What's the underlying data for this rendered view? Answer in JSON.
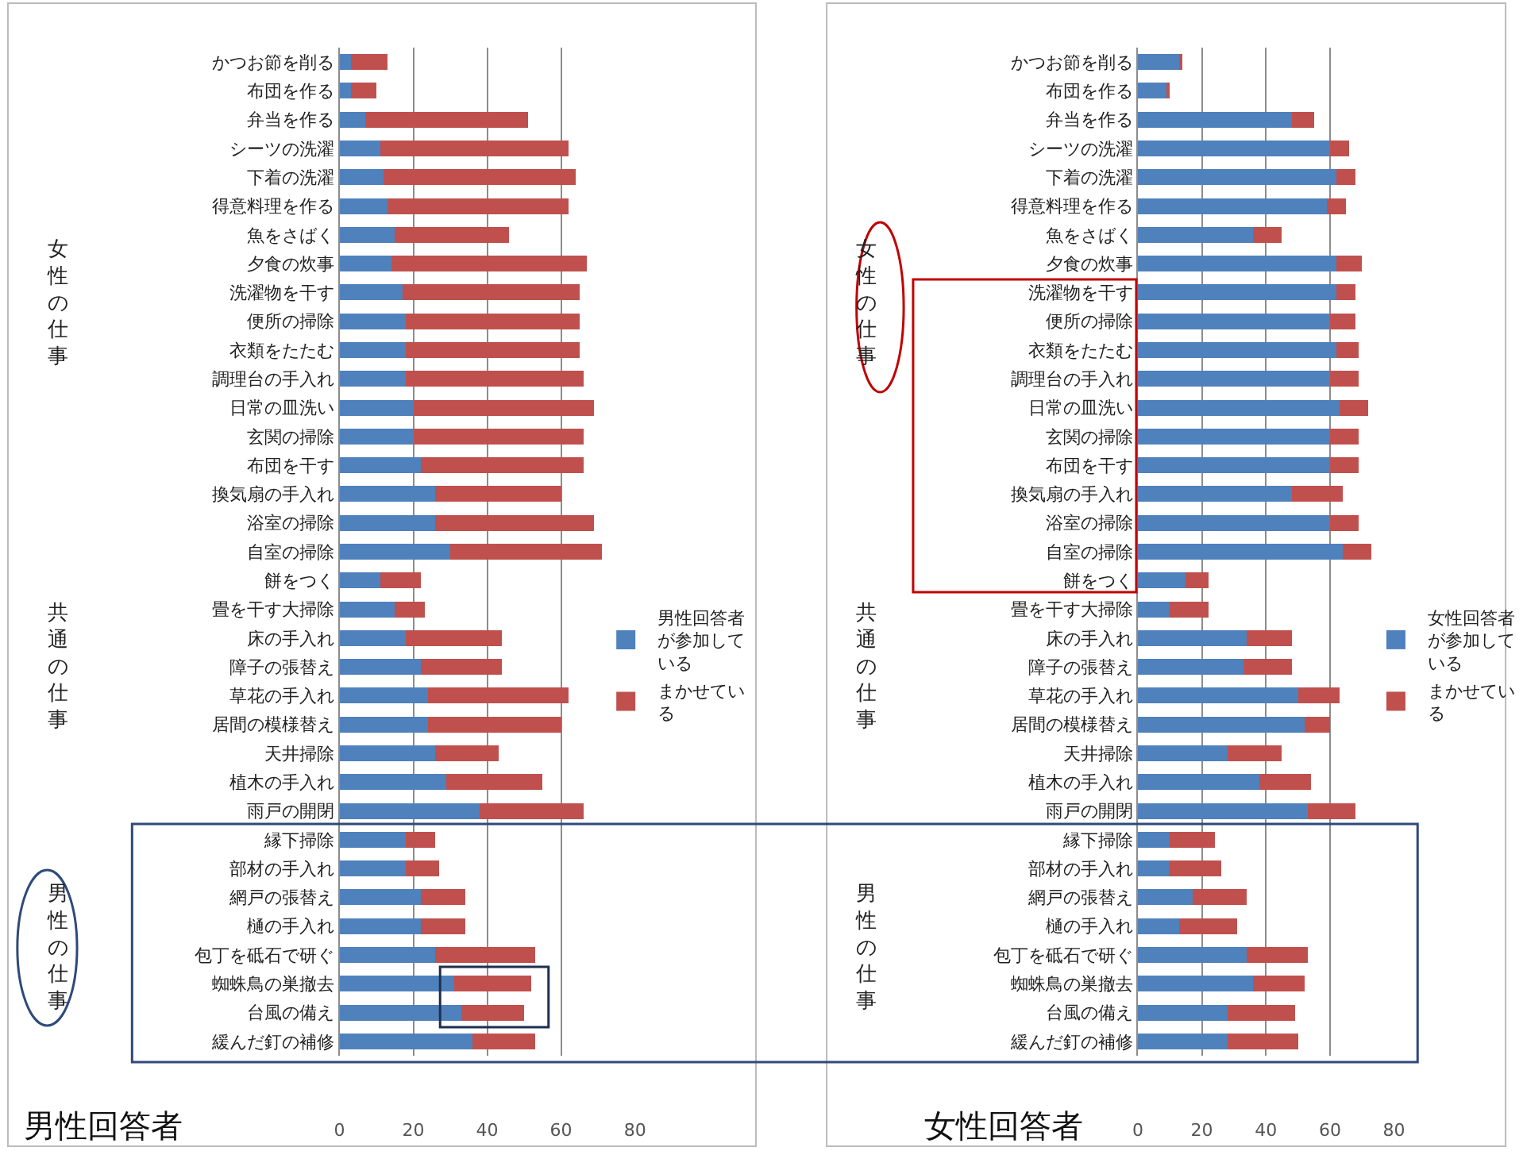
{
  "chart_data": [
    {
      "type": "bar",
      "orientation": "horizontal",
      "stacked": true,
      "title": "男性回答者",
      "categories": [
        "かつお節を削る",
        "布団を作る",
        "弁当を作る",
        "シーツの洗濯",
        "下着の洗濯",
        "得意料理を作る",
        "魚をさばく",
        "夕食の炊事",
        "洗濯物を干す",
        "便所の掃除",
        "衣類をたたむ",
        "調理台の手入れ",
        "日常の皿洗い",
        "玄関の掃除",
        "布団を干す",
        "換気扇の手入れ",
        "浴室の掃除",
        "自室の掃除",
        "餅をつく",
        "畳を干す大掃除",
        "床の手入れ",
        "障子の張替え",
        "草花の手入れ",
        "居間の模様替え",
        "天井掃除",
        "植木の手入れ",
        "雨戸の開閉",
        "縁下掃除",
        "部材の手入れ",
        "網戸の張替え",
        "樋の手入れ",
        "包丁を砥石で研ぐ",
        "蜘蛛鳥の巣撤去",
        "台風の備え",
        "緩んだ釘の補修"
      ],
      "series": [
        {
          "name": "男性回答者が参加している",
          "color": "#4f81bd",
          "values": [
            3,
            3,
            7,
            11,
            12,
            13,
            15,
            14,
            17,
            18,
            18,
            18,
            20,
            20,
            22,
            26,
            26,
            30,
            11,
            15,
            18,
            22,
            24,
            24,
            26,
            29,
            38,
            18,
            18,
            22,
            22,
            26,
            31,
            33,
            36
          ]
        },
        {
          "name": "まかせている",
          "color": "#c0504d",
          "values": [
            10,
            7,
            44,
            51,
            52,
            49,
            31,
            53,
            48,
            47,
            47,
            48,
            49,
            46,
            44,
            34,
            43,
            41,
            11,
            8,
            26,
            22,
            38,
            36,
            17,
            26,
            28,
            8,
            9,
            12,
            12,
            27,
            21,
            17,
            17
          ]
        }
      ],
      "xlim": [
        0,
        80
      ],
      "xticks": [
        0,
        20,
        40,
        60,
        80
      ],
      "grid": "x",
      "legend": "right",
      "annotations": [
        "女性の仕事",
        "共通の仕事",
        "男性の仕事"
      ]
    },
    {
      "type": "bar",
      "orientation": "horizontal",
      "stacked": true,
      "title": "女性回答者",
      "categories": [
        "かつお節を削る",
        "布団を作る",
        "弁当を作る",
        "シーツの洗濯",
        "下着の洗濯",
        "得意料理を作る",
        "魚をさばく",
        "夕食の炊事",
        "洗濯物を干す",
        "便所の掃除",
        "衣類をたたむ",
        "調理台の手入れ",
        "日常の皿洗い",
        "玄関の掃除",
        "布団を干す",
        "換気扇の手入れ",
        "浴室の掃除",
        "自室の掃除",
        "餅をつく",
        "畳を干す大掃除",
        "床の手入れ",
        "障子の張替え",
        "草花の手入れ",
        "居間の模様替え",
        "天井掃除",
        "植木の手入れ",
        "雨戸の開閉",
        "縁下掃除",
        "部材の手入れ",
        "網戸の張替え",
        "樋の手入れ",
        "包丁を砥石で研ぐ",
        "蜘蛛鳥の巣撤去",
        "台風の備え",
        "緩んだ釘の補修"
      ],
      "series": [
        {
          "name": "女性回答者が参加している",
          "color": "#4f81bd",
          "values": [
            13,
            9,
            48,
            60,
            62,
            59,
            36,
            62,
            62,
            60,
            62,
            60,
            63,
            60,
            60,
            48,
            60,
            64,
            15,
            10,
            34,
            33,
            50,
            52,
            28,
            38,
            53,
            10,
            10,
            17,
            13,
            34,
            36,
            28,
            28
          ]
        },
        {
          "name": "まかせている",
          "color": "#c0504d",
          "values": [
            1,
            1,
            7,
            6,
            6,
            6,
            9,
            8,
            6,
            8,
            7,
            9,
            9,
            9,
            9,
            16,
            9,
            9,
            7,
            12,
            14,
            15,
            13,
            8,
            17,
            16,
            15,
            14,
            16,
            17,
            18,
            19,
            16,
            21,
            22
          ]
        }
      ],
      "xlim": [
        0,
        80
      ],
      "xticks": [
        0,
        20,
        40,
        60,
        80
      ],
      "grid": "x",
      "legend": "right",
      "annotations": [
        "女性の仕事",
        "共通の仕事",
        "男性の仕事"
      ]
    }
  ]
}
